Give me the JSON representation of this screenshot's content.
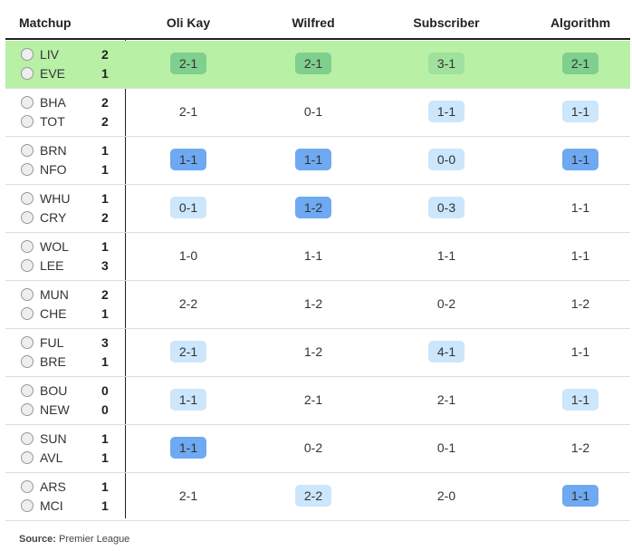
{
  "header": {
    "matchup": "Matchup",
    "columns": [
      "Oli Kay",
      "Wilfred",
      "Subscriber",
      "Algorithm"
    ]
  },
  "rows": [
    {
      "home": "LIV",
      "home_score": 2,
      "away": "EVE",
      "away_score": 1,
      "color": "#b8f0a6",
      "picks": [
        {
          "text": "2-1",
          "color": "#7fcf8e"
        },
        {
          "text": "2-1",
          "color": "#7fcf8e"
        },
        {
          "text": "3-1",
          "color": "#9fe19d"
        },
        {
          "text": "2-1",
          "color": "#7fcf8e"
        }
      ]
    },
    {
      "home": "BHA",
      "home_score": 2,
      "away": "TOT",
      "away_score": 2,
      "color": null,
      "picks": [
        {
          "text": "2-1",
          "color": null
        },
        {
          "text": "0-1",
          "color": null
        },
        {
          "text": "1-1",
          "color": "#cce6fb"
        },
        {
          "text": "1-1",
          "color": "#cce6fb"
        }
      ]
    },
    {
      "home": "BRN",
      "home_score": 1,
      "away": "NFO",
      "away_score": 1,
      "color": null,
      "picks": [
        {
          "text": "1-1",
          "color": "#6ea9f2"
        },
        {
          "text": "1-1",
          "color": "#6ea9f2"
        },
        {
          "text": "0-0",
          "color": "#cce6fb"
        },
        {
          "text": "1-1",
          "color": "#6ea9f2"
        }
      ]
    },
    {
      "home": "WHU",
      "home_score": 1,
      "away": "CRY",
      "away_score": 2,
      "color": null,
      "picks": [
        {
          "text": "0-1",
          "color": "#cce6fb"
        },
        {
          "text": "1-2",
          "color": "#6ea9f2"
        },
        {
          "text": "0-3",
          "color": "#cce6fb"
        },
        {
          "text": "1-1",
          "color": null
        }
      ]
    },
    {
      "home": "WOL",
      "home_score": 1,
      "away": "LEE",
      "away_score": 3,
      "color": null,
      "picks": [
        {
          "text": "1-0",
          "color": null
        },
        {
          "text": "1-1",
          "color": null
        },
        {
          "text": "1-1",
          "color": null
        },
        {
          "text": "1-1",
          "color": null
        }
      ]
    },
    {
      "home": "MUN",
      "home_score": 2,
      "away": "CHE",
      "away_score": 1,
      "color": null,
      "picks": [
        {
          "text": "2-2",
          "color": null
        },
        {
          "text": "1-2",
          "color": null
        },
        {
          "text": "0-2",
          "color": null
        },
        {
          "text": "1-2",
          "color": null
        }
      ]
    },
    {
      "home": "FUL",
      "home_score": 3,
      "away": "BRE",
      "away_score": 1,
      "color": null,
      "picks": [
        {
          "text": "2-1",
          "color": "#cce6fb"
        },
        {
          "text": "1-2",
          "color": null
        },
        {
          "text": "4-1",
          "color": "#cce6fb"
        },
        {
          "text": "1-1",
          "color": null
        }
      ]
    },
    {
      "home": "BOU",
      "home_score": 0,
      "away": "NEW",
      "away_score": 0,
      "color": null,
      "picks": [
        {
          "text": "1-1",
          "color": "#cce6fb"
        },
        {
          "text": "2-1",
          "color": null
        },
        {
          "text": "2-1",
          "color": null
        },
        {
          "text": "1-1",
          "color": "#cce6fb"
        }
      ]
    },
    {
      "home": "SUN",
      "home_score": 1,
      "away": "AVL",
      "away_score": 1,
      "color": null,
      "picks": [
        {
          "text": "1-1",
          "color": "#6ea9f2"
        },
        {
          "text": "0-2",
          "color": null
        },
        {
          "text": "0-1",
          "color": null
        },
        {
          "text": "1-2",
          "color": null
        }
      ]
    },
    {
      "home": "ARS",
      "home_score": 1,
      "away": "MCI",
      "away_score": 1,
      "color": null,
      "picks": [
        {
          "text": "2-1",
          "color": null
        },
        {
          "text": "2-2",
          "color": "#cce6fb"
        },
        {
          "text": "2-0",
          "color": null
        },
        {
          "text": "1-1",
          "color": "#6ea9f2"
        }
      ]
    }
  ],
  "source": {
    "label": "Source:",
    "text": "Premier League"
  }
}
